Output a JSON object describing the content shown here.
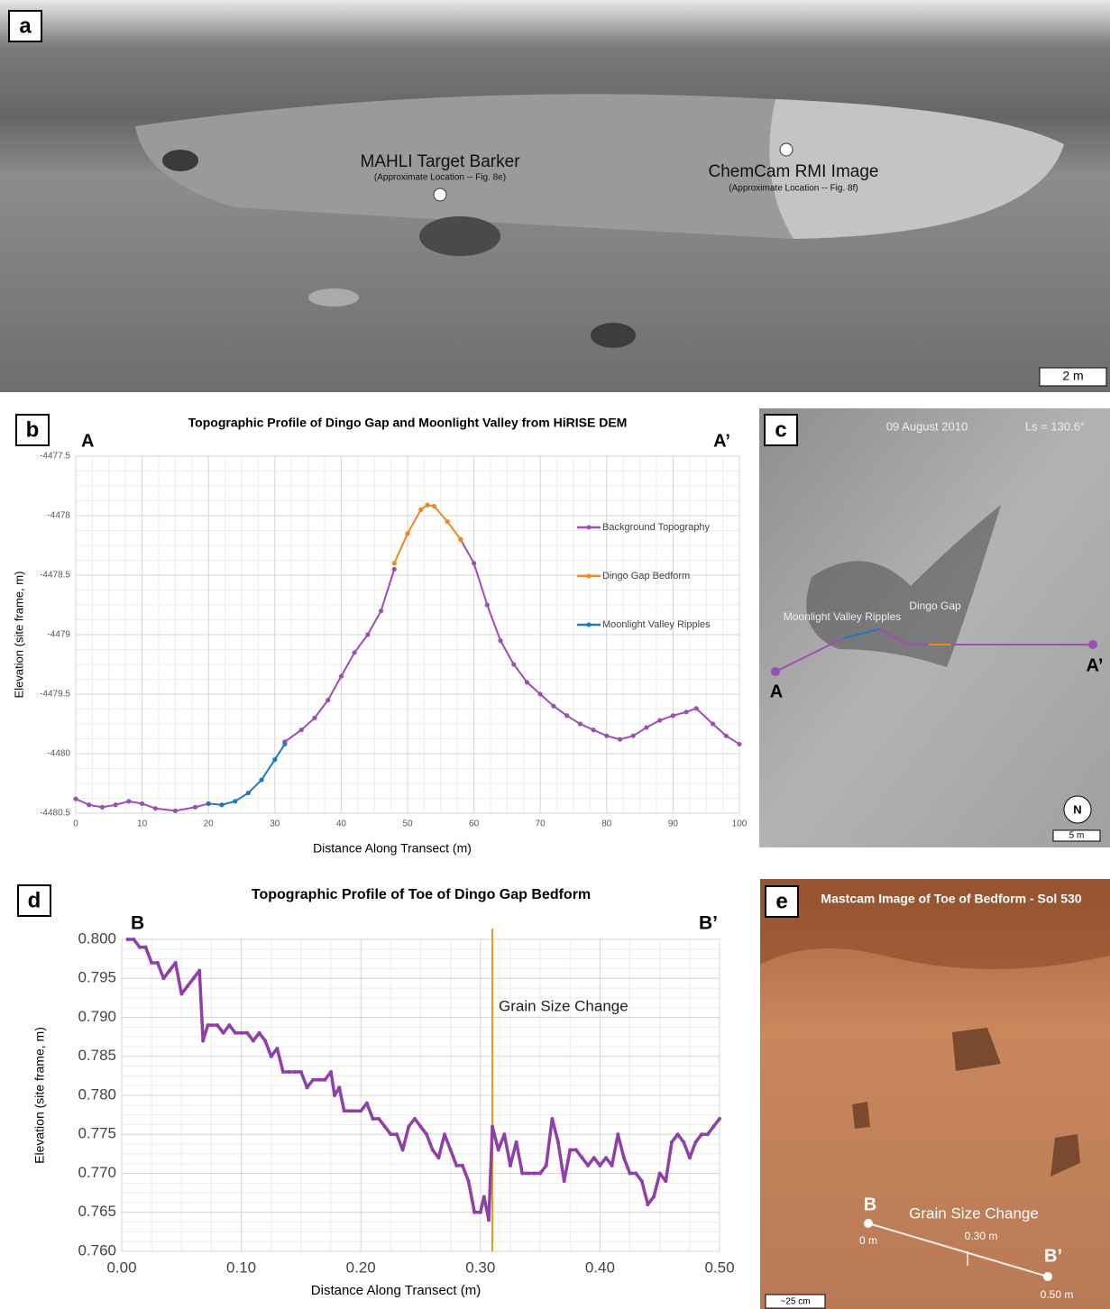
{
  "chart_data": [
    {
      "type": "line",
      "title": "Topographic Profile of Dingo Gap and Moonlight Valley from HiRISE DEM",
      "xlabel": "Distance  Along Transect (m)",
      "ylabel": "Elevation (site frame, m)",
      "xlim": [
        0,
        100
      ],
      "xticks": [
        0,
        10,
        20,
        30,
        40,
        50,
        60,
        70,
        80,
        90,
        100
      ],
      "ylim": [
        -4480.5,
        -4477.5
      ],
      "yticks": [
        -4480.5,
        -4480,
        -4479.5,
        -4479,
        -4478.5,
        -4478,
        -4477.5
      ],
      "grid": true,
      "legend": "right",
      "corner_labels": [
        "A",
        "A’"
      ],
      "series": [
        {
          "name": "Background Topography",
          "color": "#9b4fb5",
          "x": [
            0,
            2,
            4,
            6,
            8,
            10,
            12,
            15,
            18,
            20,
            26,
            31.5,
            34,
            36,
            38,
            40,
            42,
            44,
            46,
            48,
            53,
            58,
            60,
            62,
            64,
            66,
            68,
            70,
            72,
            74,
            76,
            78,
            80,
            82,
            84,
            86,
            88,
            90,
            92,
            93.5,
            96,
            98,
            100
          ],
          "values": [
            -4480.38,
            -4480.43,
            -4480.45,
            -4480.43,
            -4480.4,
            -4480.42,
            -4480.46,
            -4480.48,
            -4480.45,
            -4480.42,
            null,
            -4479.9,
            -4479.8,
            -4479.7,
            -4479.55,
            -4479.35,
            -4479.15,
            -4479.0,
            -4478.8,
            -4478.45,
            null,
            -4478.2,
            -4478.4,
            -4478.75,
            -4479.05,
            -4479.25,
            -4479.4,
            -4479.5,
            -4479.6,
            -4479.68,
            -4479.75,
            -4479.8,
            -4479.85,
            -4479.88,
            -4479.85,
            -4479.78,
            -4479.72,
            -4479.68,
            -4479.65,
            -4479.62,
            -4479.75,
            -4479.85,
            -4479.92
          ]
        },
        {
          "name": "Dingo Gap Bedform",
          "color": "#f0861e",
          "x": [
            48,
            50,
            52,
            53,
            54,
            56,
            58
          ],
          "values": [
            -4478.4,
            -4478.15,
            -4477.95,
            -4477.91,
            -4477.92,
            -4478.05,
            -4478.2
          ]
        },
        {
          "name": "Moonlight Valley Ripples",
          "color": "#1f78c0",
          "x": [
            20,
            22,
            24,
            26,
            28,
            30,
            31.5
          ],
          "values": [
            -4480.42,
            -4480.43,
            -4480.4,
            -4480.33,
            -4480.22,
            -4480.05,
            -4479.92
          ]
        }
      ]
    },
    {
      "type": "line",
      "title": "Topographic Profile of Toe of Dingo Gap Bedform",
      "xlabel": "Distance  Along Transect (m)",
      "ylabel": "Elevation (site frame, m)",
      "xlim": [
        0,
        0.5
      ],
      "xticks": [
        {
          "value": 0,
          "label": "0.00"
        },
        {
          "value": 0.1,
          "label": "0.10"
        },
        {
          "value": 0.2,
          "label": "0.20"
        },
        {
          "value": 0.3,
          "label": "0.30"
        },
        {
          "value": 0.4,
          "label": "0.40"
        },
        {
          "value": 0.5,
          "label": "0.50"
        }
      ],
      "ylim": [
        0.76,
        0.8
      ],
      "yticks": [
        {
          "value": 0.76,
          "label": "0.760"
        },
        {
          "value": 0.765,
          "label": "0.765"
        },
        {
          "value": 0.77,
          "label": "0.770"
        },
        {
          "value": 0.775,
          "label": "0.775"
        },
        {
          "value": 0.78,
          "label": "0.780"
        },
        {
          "value": 0.785,
          "label": "0.785"
        },
        {
          "value": 0.79,
          "label": "0.790"
        },
        {
          "value": 0.795,
          "label": "0.795"
        },
        {
          "value": 0.8,
          "label": "0.800"
        }
      ],
      "grid": true,
      "corner_labels": [
        "B",
        "B’"
      ],
      "vline": {
        "x": 0.31,
        "label": "Grain Size Change",
        "color": "#f0961e"
      },
      "series": [
        {
          "color": "#8e3fa8",
          "x": [
            0.005,
            0.01,
            0.015,
            0.02,
            0.025,
            0.03,
            0.035,
            0.04,
            0.045,
            0.05,
            0.055,
            0.06,
            0.065,
            0.068,
            0.072,
            0.08,
            0.085,
            0.09,
            0.095,
            0.1,
            0.105,
            0.11,
            0.115,
            0.12,
            0.125,
            0.13,
            0.135,
            0.14,
            0.145,
            0.15,
            0.155,
            0.16,
            0.165,
            0.17,
            0.175,
            0.178,
            0.182,
            0.186,
            0.19,
            0.2,
            0.205,
            0.21,
            0.215,
            0.22,
            0.225,
            0.23,
            0.235,
            0.24,
            0.245,
            0.25,
            0.255,
            0.26,
            0.265,
            0.27,
            0.275,
            0.28,
            0.285,
            0.29,
            0.295,
            0.3,
            0.303,
            0.307,
            0.31,
            0.315,
            0.32,
            0.325,
            0.33,
            0.335,
            0.34,
            0.345,
            0.35,
            0.355,
            0.36,
            0.365,
            0.37,
            0.375,
            0.38,
            0.385,
            0.39,
            0.395,
            0.4,
            0.405,
            0.41,
            0.415,
            0.42,
            0.425,
            0.43,
            0.435,
            0.44,
            0.445,
            0.45,
            0.455,
            0.46,
            0.465,
            0.47,
            0.475,
            0.48,
            0.485,
            0.49,
            0.495,
            0.5
          ],
          "values": [
            0.8,
            0.8,
            0.799,
            0.799,
            0.797,
            0.797,
            0.795,
            0.796,
            0.797,
            0.793,
            0.794,
            0.795,
            0.796,
            0.787,
            0.789,
            0.789,
            0.788,
            0.789,
            0.788,
            0.788,
            0.788,
            0.787,
            0.788,
            0.787,
            0.785,
            0.786,
            0.783,
            0.783,
            0.783,
            0.783,
            0.781,
            0.782,
            0.782,
            0.782,
            0.783,
            0.78,
            0.781,
            0.778,
            0.778,
            0.778,
            0.779,
            0.777,
            0.777,
            0.776,
            0.775,
            0.775,
            0.773,
            0.776,
            0.777,
            0.776,
            0.775,
            0.773,
            0.772,
            0.775,
            0.773,
            0.771,
            0.771,
            0.769,
            0.765,
            0.765,
            0.767,
            0.764,
            0.776,
            0.773,
            0.775,
            0.771,
            0.774,
            0.77,
            0.77,
            0.77,
            0.77,
            0.771,
            0.777,
            0.774,
            0.769,
            0.773,
            0.773,
            0.772,
            0.771,
            0.772,
            0.771,
            0.772,
            0.771,
            0.775,
            0.772,
            0.77,
            0.77,
            0.769,
            0.766,
            0.767,
            0.77,
            0.769,
            0.774,
            0.775,
            0.774,
            0.772,
            0.774,
            0.775,
            0.775,
            0.776,
            0.777
          ]
        }
      ]
    }
  ],
  "panels": {
    "a": {
      "label": "a",
      "target": "MAHLI Target Barker",
      "target_note": "(Approximate Location -- Fig. 8e)",
      "rmi": "ChemCam RMI Image",
      "rmi_note": "(Approximate Location --  Fig. 8f)",
      "scale": "2 m"
    },
    "b": {
      "label": "b"
    },
    "c": {
      "label": "c",
      "date": "09 August 2010",
      "ls": "Ls = 130.6°",
      "ripples": "Moonlight Valley Ripples",
      "gap": "Dingo Gap",
      "a": "A",
      "a_prime": "A’",
      "north": "N",
      "scale": "5 m"
    },
    "d": {
      "label": "d"
    },
    "e": {
      "label": "e",
      "title": "Mastcam Image of Toe of Bedform - Sol 530",
      "b": "B",
      "b_prime": "B’",
      "change": "Grain Size Change",
      "start": "0 m",
      "mid": "0.30 m",
      "end": "0.50 m",
      "scale": "~25 cm"
    }
  }
}
